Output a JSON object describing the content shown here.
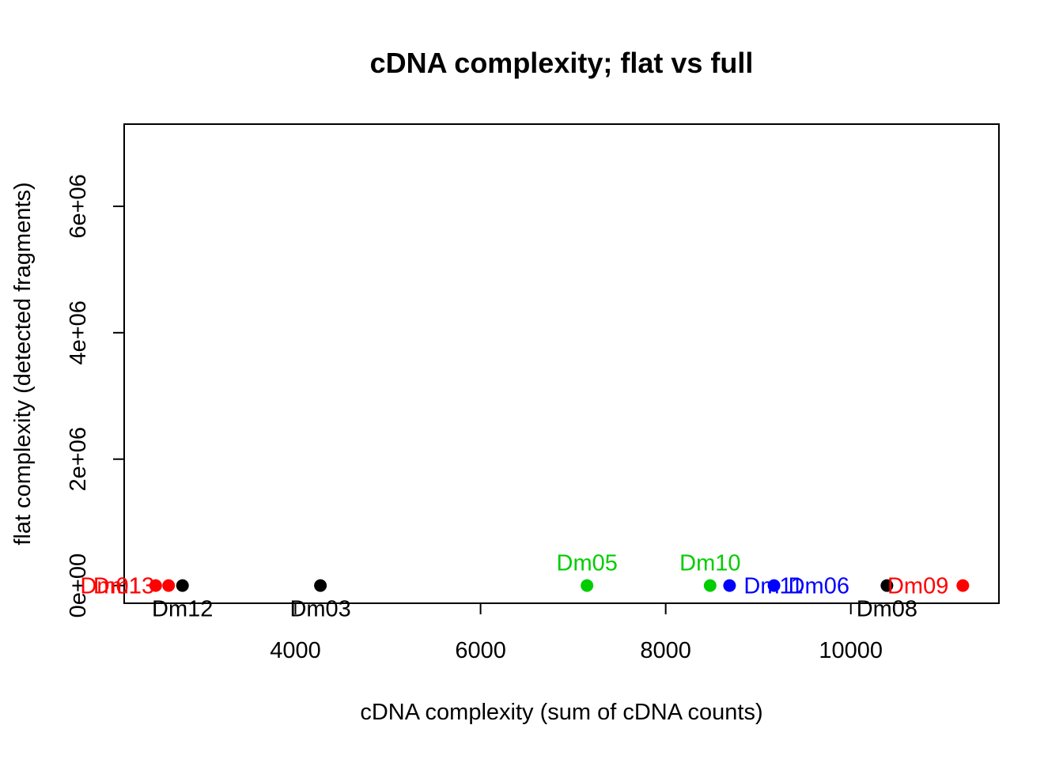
{
  "chart_data": {
    "type": "scatter",
    "title": "cDNA complexity; flat vs full",
    "xlabel": "cDNA complexity (sum of cDNA counts)",
    "ylabel": "flat complexity (detected fragments)",
    "xlim": [
      2150,
      11600
    ],
    "ylim": [
      -280000,
      7300000
    ],
    "xticks": [
      {
        "value": 4000,
        "label": "4000"
      },
      {
        "value": 6000,
        "label": "6000"
      },
      {
        "value": 8000,
        "label": "8000"
      },
      {
        "value": 10000,
        "label": "10000"
      }
    ],
    "yticks": [
      {
        "value": 0,
        "label": "0e+00"
      },
      {
        "value": 2000000,
        "label": "2e+06"
      },
      {
        "value": 4000000,
        "label": "4e+06"
      },
      {
        "value": 6000000,
        "label": "6e+06"
      }
    ],
    "grid": false,
    "legend": "none",
    "points": [
      {
        "label": "Dm01",
        "x": 2490,
        "y": 0,
        "color": "#FF0000",
        "pos": "left"
      },
      {
        "label": "Dm13",
        "x": 2630,
        "y": 0,
        "color": "#FF0000",
        "pos": "left"
      },
      {
        "label": "Dm12",
        "x": 2780,
        "y": 0,
        "color": "#000000",
        "pos": "below"
      },
      {
        "label": "Dm03",
        "x": 4270,
        "y": 0,
        "color": "#000000",
        "pos": "below"
      },
      {
        "label": "Dm05",
        "x": 7150,
        "y": 0,
        "color": "#00CD00",
        "pos": "above"
      },
      {
        "label": "Dm10",
        "x": 8480,
        "y": 0,
        "color": "#00CD00",
        "pos": "above"
      },
      {
        "label": "Dm11",
        "x": 8690,
        "y": 0,
        "color": "#0000FF",
        "pos": "right"
      },
      {
        "label": "Dm06",
        "x": 9170,
        "y": 0,
        "color": "#0000FF",
        "pos": "right"
      },
      {
        "label": "Dm08",
        "x": 10390,
        "y": 0,
        "color": "#000000",
        "pos": "below"
      },
      {
        "label": "Dm09",
        "x": 11210,
        "y": 0,
        "color": "#FF0000",
        "pos": "left"
      }
    ]
  }
}
